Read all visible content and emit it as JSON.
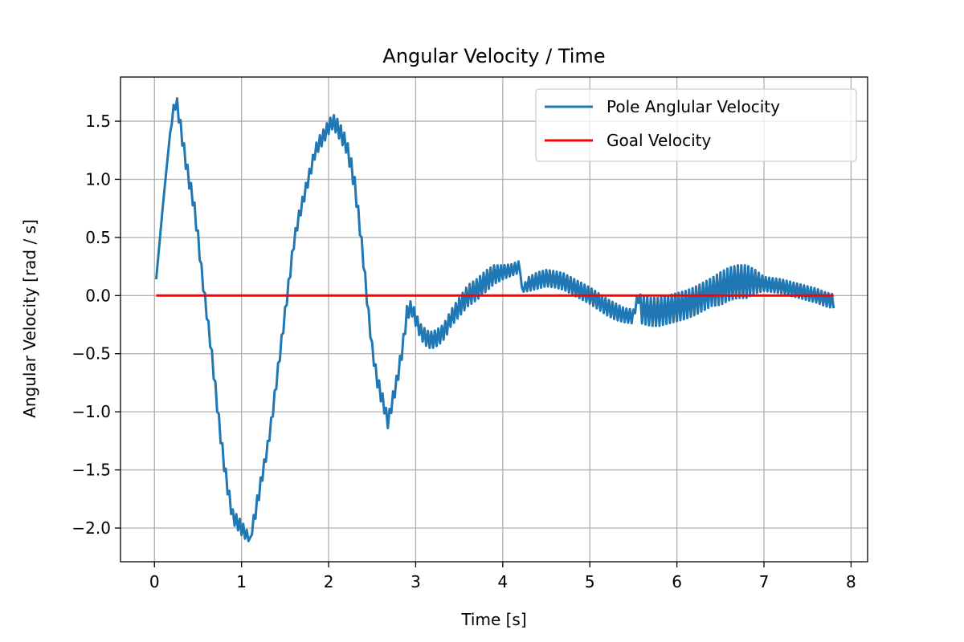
{
  "chart_data": {
    "type": "line",
    "title": "Angular Velocity / Time",
    "xlabel": "Time [s]",
    "ylabel": "Angular Velocity [rad / s]",
    "xlim": [
      -0.39,
      8.19
    ],
    "ylim": [
      -2.29,
      1.88
    ],
    "xticks": [
      0,
      1,
      2,
      3,
      4,
      5,
      6,
      7,
      8
    ],
    "xtick_labels": [
      "0",
      "1",
      "2",
      "3",
      "4",
      "5",
      "6",
      "7",
      "8"
    ],
    "yticks": [
      -2.0,
      -1.5,
      -1.0,
      -0.5,
      0.0,
      0.5,
      1.0,
      1.5
    ],
    "ytick_labels": [
      "−2.0",
      "−1.5",
      "−1.0",
      "−0.5",
      "0.0",
      "0.5",
      "1.0",
      "1.5"
    ],
    "grid": true,
    "legend_position": "top-right",
    "series": [
      {
        "name": "Pole Anglular Velocity",
        "color": "#1f77b4",
        "x": [
          0.02,
          0.1,
          0.18,
          0.22,
          0.25,
          0.28,
          0.32,
          0.36,
          0.4,
          0.45,
          0.5,
          0.55,
          0.6,
          0.65,
          0.7,
          0.75,
          0.8,
          0.85,
          0.9,
          0.95,
          1.0,
          1.05,
          1.1,
          1.15,
          1.2,
          1.25,
          1.3,
          1.35,
          1.4,
          1.45,
          1.5,
          1.55,
          1.6,
          1.65,
          1.7,
          1.75,
          1.8,
          1.85,
          1.9,
          1.95,
          2.0,
          2.05,
          2.1,
          2.15,
          2.2,
          2.25,
          2.3,
          2.35,
          2.4,
          2.45,
          2.5,
          2.55,
          2.6,
          2.65,
          2.68,
          2.72,
          2.78,
          2.85,
          2.9,
          2.95,
          3.0,
          3.05,
          3.1,
          3.15,
          3.2,
          3.25,
          3.3,
          3.35,
          3.4,
          3.5,
          3.6,
          3.7,
          3.8,
          3.9,
          4.0,
          4.1,
          4.2,
          4.22,
          4.3,
          4.4,
          4.5,
          4.6,
          4.7,
          4.8,
          4.9,
          5.0,
          5.1,
          5.2,
          5.3,
          5.4,
          5.5,
          5.55,
          5.6,
          5.7,
          5.8,
          5.9,
          6.0,
          6.1,
          6.2,
          6.3,
          6.4,
          6.5,
          6.6,
          6.7,
          6.8,
          6.9,
          7.0,
          7.1,
          7.2,
          7.3,
          7.4,
          7.5,
          7.6,
          7.7,
          7.8
        ],
        "values": [
          0.14,
          0.8,
          1.4,
          1.6,
          1.68,
          1.55,
          1.35,
          1.15,
          0.98,
          0.8,
          0.5,
          0.15,
          -0.15,
          -0.45,
          -0.8,
          -1.15,
          -1.45,
          -1.7,
          -1.9,
          -1.95,
          -2.0,
          -2.05,
          -2.1,
          -1.9,
          -1.7,
          -1.5,
          -1.3,
          -1.05,
          -0.75,
          -0.45,
          -0.15,
          0.15,
          0.45,
          0.65,
          0.8,
          0.95,
          1.1,
          1.25,
          1.32,
          1.38,
          1.45,
          1.5,
          1.45,
          1.38,
          1.3,
          1.15,
          0.95,
          0.65,
          0.3,
          -0.1,
          -0.45,
          -0.7,
          -0.85,
          -0.98,
          -1.1,
          -0.95,
          -0.75,
          -0.45,
          -0.15,
          -0.1,
          -0.2,
          -0.3,
          -0.35,
          -0.38,
          -0.38,
          -0.36,
          -0.33,
          -0.28,
          -0.2,
          -0.1,
          0.0,
          0.05,
          0.12,
          0.18,
          0.2,
          0.22,
          0.25,
          0.05,
          0.1,
          0.13,
          0.15,
          0.14,
          0.12,
          0.08,
          0.04,
          0.0,
          -0.05,
          -0.1,
          -0.14,
          -0.17,
          -0.18,
          0.0,
          -0.12,
          -0.14,
          -0.14,
          -0.12,
          -0.1,
          -0.08,
          -0.05,
          -0.01,
          0.03,
          0.06,
          0.1,
          0.12,
          0.12,
          0.12,
          0.1,
          0.09,
          0.08,
          0.06,
          0.04,
          0.02,
          0.0,
          -0.03,
          -0.05
        ],
        "oscillation_amplitude": [
          0,
          0,
          0,
          0.04,
          0.06,
          0.06,
          0.06,
          0.06,
          0.06,
          0.06,
          0.06,
          0.05,
          0.05,
          0.05,
          0.06,
          0.06,
          0.06,
          0.06,
          0.06,
          0.06,
          0.06,
          0.05,
          0.02,
          0.06,
          0.06,
          0.05,
          0.05,
          0.05,
          0.05,
          0.05,
          0.05,
          0.05,
          0.05,
          0.05,
          0.05,
          0.05,
          0.05,
          0.05,
          0.06,
          0.06,
          0.06,
          0.06,
          0.07,
          0.07,
          0.07,
          0.07,
          0.07,
          0.06,
          0.06,
          0.05,
          0.05,
          0.06,
          0.06,
          0.06,
          0.04,
          0.06,
          0.06,
          0.06,
          0.06,
          0.06,
          0.06,
          0.06,
          0.07,
          0.07,
          0.07,
          0.07,
          0.07,
          0.07,
          0.07,
          0.08,
          0.09,
          0.09,
          0.09,
          0.08,
          0.06,
          0.05,
          0.05,
          0.02,
          0.06,
          0.07,
          0.07,
          0.07,
          0.07,
          0.07,
          0.07,
          0.07,
          0.07,
          0.07,
          0.07,
          0.06,
          0.06,
          0.02,
          0.12,
          0.12,
          0.12,
          0.12,
          0.12,
          0.12,
          0.12,
          0.12,
          0.12,
          0.14,
          0.14,
          0.14,
          0.14,
          0.1,
          0.06,
          0.06,
          0.06,
          0.06,
          0.06,
          0.06,
          0.06,
          0.06,
          0.06
        ]
      },
      {
        "name": "Goal Velocity",
        "color": "#ff0000",
        "x": [
          0.02,
          7.8
        ],
        "values": [
          0.0,
          0.0
        ]
      }
    ]
  }
}
